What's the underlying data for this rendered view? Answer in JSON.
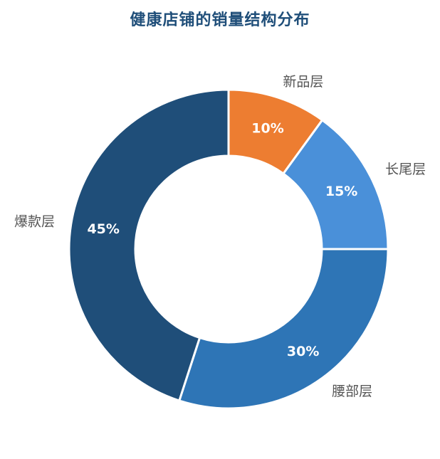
{
  "chart_data": {
    "type": "pie",
    "variant": "donut",
    "title": "健康店铺的销量结构分布",
    "categories": [
      "新品层",
      "长尾层",
      "腰部层",
      "爆款层"
    ],
    "values": [
      10,
      15,
      30,
      45
    ],
    "value_labels": [
      "10%",
      "15%",
      "30%",
      "45%"
    ],
    "colors": [
      "#ed7d31",
      "#4a90d9",
      "#2e75b6",
      "#1f4e79"
    ],
    "start": "12 o'clock, clockwise",
    "legend": "none (labels outside slices)"
  },
  "colors": {
    "title": "#1f4e79",
    "category_label": "#555555",
    "percent_label": "#ffffff",
    "background": "#ffffff"
  }
}
